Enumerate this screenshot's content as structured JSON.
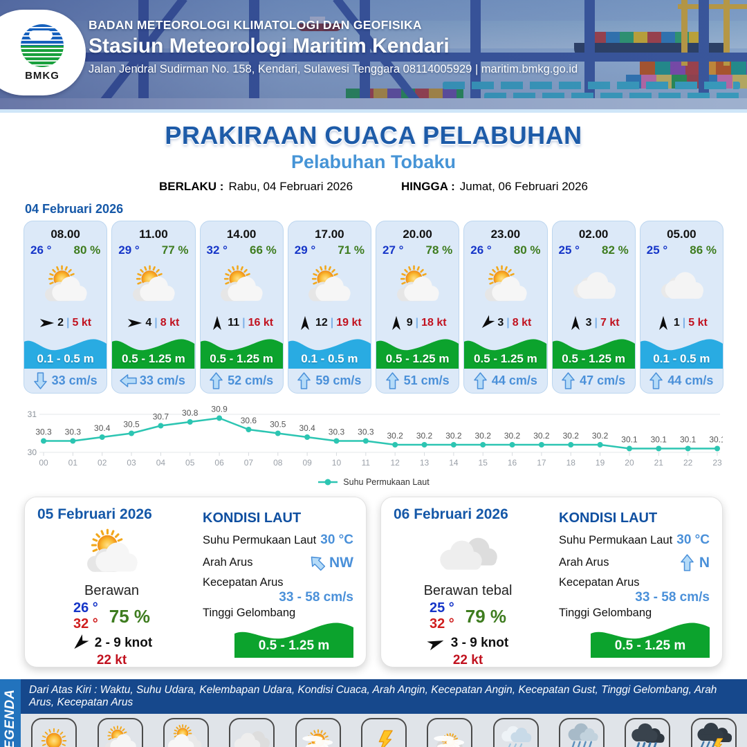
{
  "header": {
    "logo_label": "BMKG",
    "org": "BADAN METEOROLOGI KLIMATOLOGI DAN GEOFISIKA",
    "station": "Stasiun Meteorologi Maritim Kendari",
    "address": "Jalan Jendral Sudirman No. 158, Kendari, Sulawesi Tenggara  08114005929 | maritim.bmkg.go.id"
  },
  "title": {
    "main": "PRAKIRAAN CUACA PELABUHAN",
    "port": "Pelabuhan Tobaku",
    "valid_label": "BERLAKU :",
    "valid_value": "Rabu, 04 Februari 2026",
    "until_label": "HINGGA :",
    "until_value": "Jumat, 06 Februari 2026"
  },
  "ui": {
    "wind_separator": "|"
  },
  "colors": {
    "wave_blue": "#29abe2",
    "wave_green": "#0ca32d",
    "chart_line": "#2cc5b2",
    "temp_blue": "#1535c8",
    "humidity_green": "#3e7c1f",
    "gust_red": "#c1121f",
    "current_blue": "#4a90d9"
  },
  "forecast_day": {
    "date": "04 Februari 2026",
    "cards": [
      {
        "time": "08.00",
        "temp": "26 °",
        "humidity": "80 %",
        "icon": "sun-cloud",
        "wind_dir": "E",
        "wind_speed": "2",
        "gust": "5 kt",
        "wave": "0.1 - 0.5 m",
        "wave_color": "blue",
        "current_dir": "S",
        "current": "33 cm/s"
      },
      {
        "time": "11.00",
        "temp": "29 °",
        "humidity": "77 %",
        "icon": "sun-cloud",
        "wind_dir": "E",
        "wind_speed": "4",
        "gust": "8 kt",
        "wave": "0.5 - 1.25 m",
        "wave_color": "green",
        "current_dir": "W",
        "current": "33 cm/s"
      },
      {
        "time": "14.00",
        "temp": "32 °",
        "humidity": "66 %",
        "icon": "sun-cloud",
        "wind_dir": "N",
        "wind_speed": "11",
        "gust": "16 kt",
        "wave": "0.5 - 1.25 m",
        "wave_color": "green",
        "current_dir": "N",
        "current": "52 cm/s"
      },
      {
        "time": "17.00",
        "temp": "29 °",
        "humidity": "71 %",
        "icon": "sun-cloud",
        "wind_dir": "N",
        "wind_speed": "12",
        "gust": "19 kt",
        "wave": "0.1 - 0.5 m",
        "wave_color": "blue",
        "current_dir": "N",
        "current": "59 cm/s"
      },
      {
        "time": "20.00",
        "temp": "27 °",
        "humidity": "78 %",
        "icon": "sun-cloud",
        "wind_dir": "N",
        "wind_speed": "9",
        "gust": "18 kt",
        "wave": "0.5 - 1.25 m",
        "wave_color": "green",
        "current_dir": "N",
        "current": "51 cm/s"
      },
      {
        "time": "23.00",
        "temp": "26 °",
        "humidity": "80 %",
        "icon": "sun-cloud",
        "wind_dir": "SW",
        "wind_speed": "3",
        "gust": "8 kt",
        "wave": "0.5 - 1.25 m",
        "wave_color": "green",
        "current_dir": "N",
        "current": "44 cm/s"
      },
      {
        "time": "02.00",
        "temp": "25 °",
        "humidity": "82 %",
        "icon": "cloud",
        "wind_dir": "N",
        "wind_speed": "3",
        "gust": "7 kt",
        "wave": "0.5 - 1.25 m",
        "wave_color": "green",
        "current_dir": "N",
        "current": "47 cm/s"
      },
      {
        "time": "05.00",
        "temp": "25 °",
        "humidity": "86 %",
        "icon": "cloud",
        "wind_dir": "N",
        "wind_speed": "1",
        "gust": "5 kt",
        "wave": "0.1 - 0.5 m",
        "wave_color": "blue",
        "current_dir": "N",
        "current": "44 cm/s"
      }
    ]
  },
  "chart_data": {
    "type": "line",
    "series_label": "Suhu Permukaan Laut",
    "x": [
      "00",
      "01",
      "02",
      "03",
      "04",
      "05",
      "06",
      "07",
      "08",
      "09",
      "10",
      "11",
      "12",
      "13",
      "14",
      "15",
      "16",
      "17",
      "18",
      "19",
      "20",
      "21",
      "22",
      "23"
    ],
    "values": [
      30.3,
      30.3,
      30.4,
      30.5,
      30.7,
      30.8,
      30.9,
      30.6,
      30.5,
      30.4,
      30.3,
      30.3,
      30.2,
      30.2,
      30.2,
      30.2,
      30.2,
      30.2,
      30.2,
      30.2,
      30.1,
      30.1,
      30.1,
      30.1
    ],
    "ylim": [
      30,
      31
    ],
    "yticks": [
      30,
      31
    ],
    "grid": true,
    "legend_position": "bottom"
  },
  "day_cards": [
    {
      "date": "05 Februari 2026",
      "icon": "sun-cloud",
      "condition": "Berawan",
      "temp_min": "26 °",
      "temp_max": "32 °",
      "humidity": "75 %",
      "wind_dir": "SW",
      "wind_range": "2 - 9 knot",
      "gust": "22 kt",
      "sea": {
        "title": "KONDISI LAUT",
        "sst_label": "Suhu Permukaan Laut",
        "sst": "30 °C",
        "current_dir_label": "Arah Arus",
        "current_dir": "NW",
        "current_speed_label": "Kecepatan Arus",
        "current_speed": "33 - 58 cm/s",
        "wave_label": "Tinggi Gelombang",
        "wave": "0.5 - 1.25 m"
      }
    },
    {
      "date": "06 Februari 2026",
      "icon": "cloud-thick",
      "condition": "Berawan tebal",
      "temp_min": "25 °",
      "temp_max": "32 °",
      "humidity": "79 %",
      "wind_dir": "ENE",
      "wind_range": "3 - 9 knot",
      "gust": "22 kt",
      "sea": {
        "title": "KONDISI LAUT",
        "sst_label": "Suhu Permukaan Laut",
        "sst": "30 °C",
        "current_dir_label": "Arah Arus",
        "current_dir": "N",
        "current_speed_label": "Kecepatan Arus",
        "current_speed": "33 - 58 cm/s",
        "wave_label": "Tinggi Gelombang",
        "wave": "0.5 - 1.25 m"
      }
    }
  ],
  "legend": {
    "tab": "LEGENDA",
    "header": "Dari Atas Kiri : Waktu, Suhu Udara, Kelembapan Udara, Kondisi Cuaca, Arah Angin, Kecepatan Angin, Kecepatan Gust, Tinggi Gelombang, Arah Arus, Kecepatan Arus",
    "items": [
      {
        "label": "Cerah",
        "icon": "sun"
      },
      {
        "label": "Cerah Berawan",
        "icon": "sun-cloud"
      },
      {
        "label": "Berawan",
        "icon": "sun-cloud2"
      },
      {
        "label": "Berawan Tebal",
        "icon": "cloud-thick"
      },
      {
        "label": "Udara Kabur",
        "icon": "sun-haze"
      },
      {
        "label": "Petir",
        "icon": "bolt"
      },
      {
        "label": "Kabut",
        "icon": "fog"
      },
      {
        "label": "Hujan Ringan",
        "icon": "rain-light"
      },
      {
        "label": "Hujan Sedang",
        "icon": "rain-med"
      },
      {
        "label": "Hujan Lebat",
        "icon": "rain-heavy"
      },
      {
        "label": "Hujan Petir",
        "icon": "rain-thunder"
      }
    ]
  }
}
